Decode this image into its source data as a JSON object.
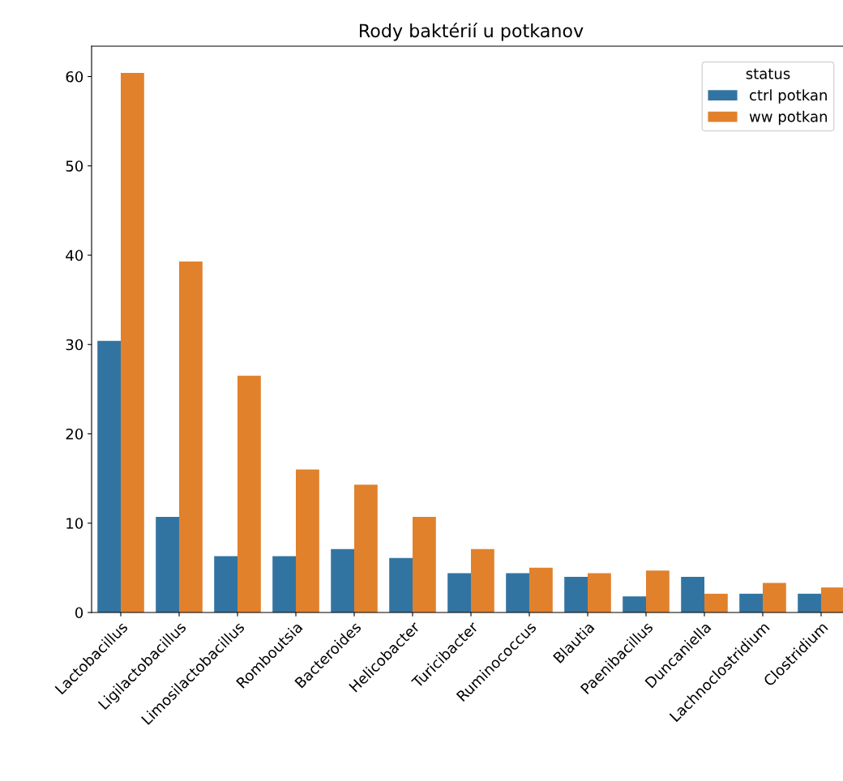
{
  "chart_data": {
    "type": "bar",
    "title": "Rody baktérií u potkanov",
    "categories": [
      "Lactobacillus",
      "Ligilactobacillus",
      "Limosilactobacillus",
      "Romboutsia",
      "Bacteroides",
      "Helicobacter",
      "Turicibacter",
      "Ruminococcus",
      "Blautia",
      "Paenibacillus",
      "Duncaniella",
      "Lachnoclostridium",
      "Clostridium"
    ],
    "series": [
      {
        "name": "ctrl potkan",
        "color": "#3274a1",
        "values": [
          30.4,
          10.7,
          6.3,
          6.3,
          7.1,
          6.1,
          4.4,
          4.4,
          4.0,
          1.8,
          4.0,
          2.1,
          2.1
        ]
      },
      {
        "name": "ww potkan",
        "color": "#e1812c",
        "values": [
          60.4,
          39.3,
          26.5,
          16.0,
          14.3,
          10.7,
          7.1,
          5.0,
          4.4,
          4.7,
          2.1,
          3.3,
          2.8
        ]
      }
    ],
    "legend_title": "status",
    "legend": "top right",
    "ylim": [
      0,
      63.4
    ],
    "yticks": [
      0,
      10,
      20,
      30,
      40,
      50,
      60
    ],
    "grid": false
  }
}
